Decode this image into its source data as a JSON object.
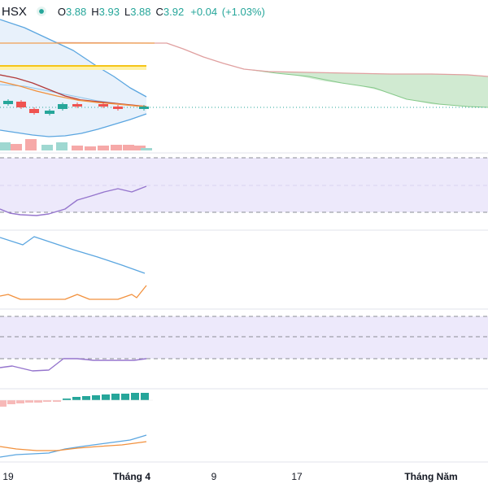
{
  "legend": {
    "symbol": "HSX",
    "open_label": "O",
    "open": "3.88",
    "high_label": "H",
    "high": "3.93",
    "low_label": "L",
    "low": "3.88",
    "close_label": "C",
    "close": "3.92",
    "change": "+0.04",
    "change_pct": "(+1.03%)"
  },
  "colors": {
    "up": "#26a69a",
    "down": "#ef5350",
    "bb": "#5ba6e0",
    "ma_orange": "#f2913d",
    "ma_red": "#b23b3b",
    "yellow_line": "#f5c518",
    "orange_line": "#f0a050",
    "rsi": "#9575cd",
    "rsi_band": "#ede9fb",
    "cloud": "#c8e6c9",
    "cloud_top": "#e0a0a0"
  },
  "chart_data": {
    "type": "candlestick",
    "x_ticks": [
      {
        "label": "19",
        "bold": false
      },
      {
        "label": "Tháng 4",
        "bold": true
      },
      {
        "label": "9",
        "bold": false
      },
      {
        "label": "17",
        "bold": false
      },
      {
        "label": "Tháng Năm",
        "bold": true
      }
    ],
    "last_candle": {
      "open": 3.88,
      "high": 3.93,
      "low": 3.88,
      "close": 3.92,
      "change": 0.04,
      "change_pct": 1.03
    },
    "candles_direction": [
      "up",
      "down",
      "down",
      "up",
      "up",
      "down",
      "down",
      "down",
      "up"
    ],
    "volume_direction": [
      "up",
      "down",
      "down",
      "up",
      "down",
      "down",
      "down",
      "down",
      "up"
    ],
    "panels": [
      "price",
      "volume",
      "rsi",
      "line-indicators",
      "stochastic",
      "histogram",
      "line-pair"
    ]
  }
}
